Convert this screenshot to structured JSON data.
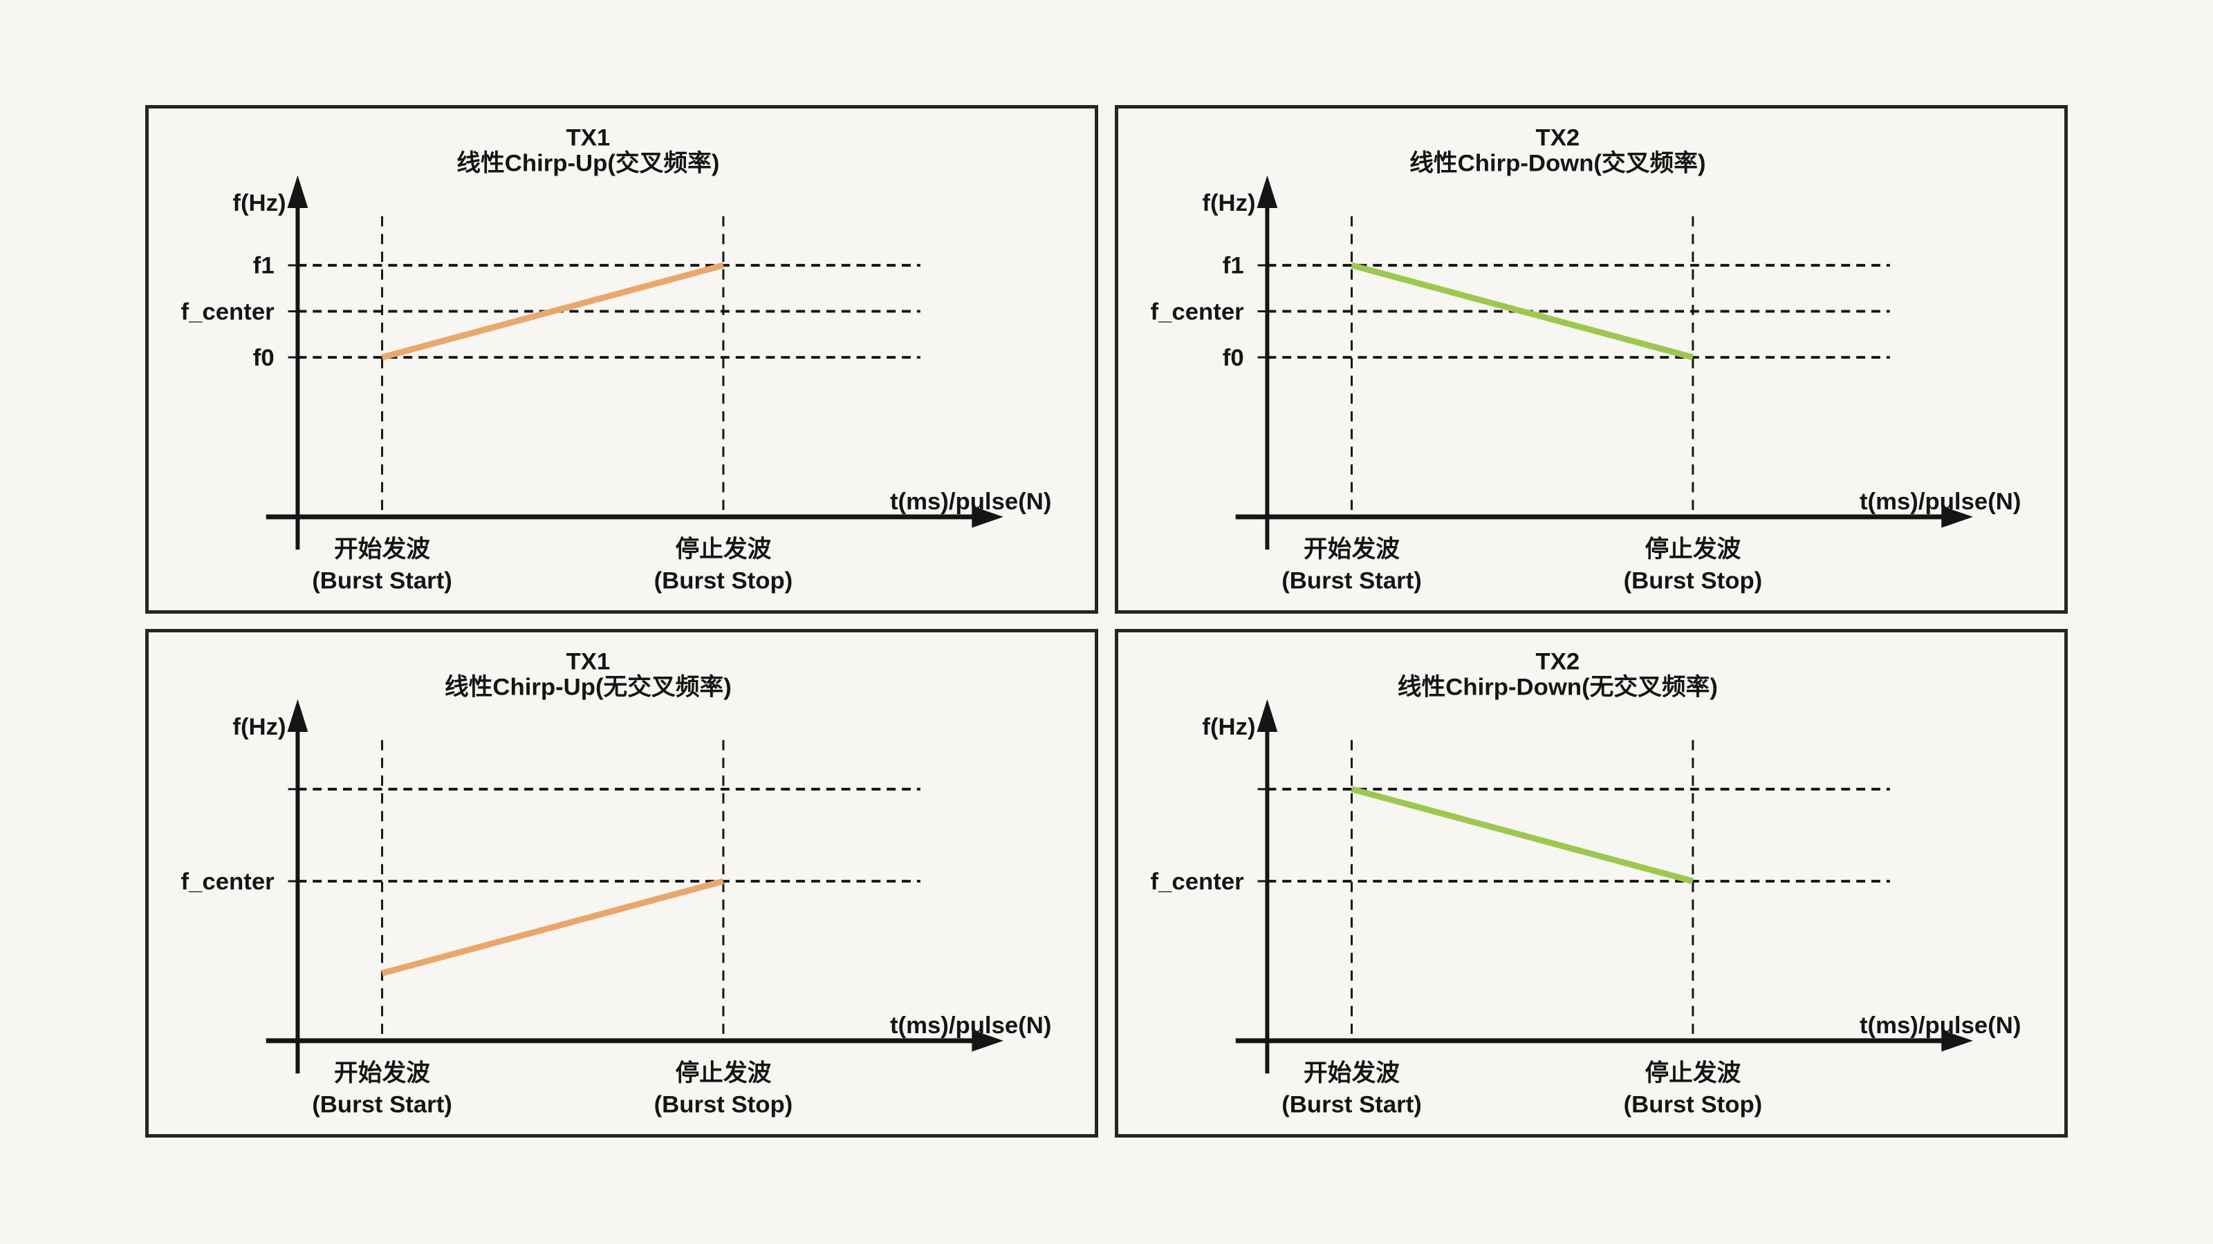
{
  "page": {
    "background": "#F7F6F3",
    "panel_border_color": "#262626",
    "axis_color": "#151515",
    "tx1_color": "#EAA76C",
    "tx2_color": "#9CC84E"
  },
  "chart_data": [
    {
      "type": "line",
      "title": "TX1",
      "subtitle": "线性Chirp-Up(交叉频率)",
      "xlabel": "t(ms)/pulse(N)",
      "ylabel": "f(Hz)",
      "color": "#EAA76C",
      "grid": "dashed",
      "y_gridlines": [
        {
          "label": "f1",
          "level": 1
        },
        {
          "label": "f_center",
          "level": 0.5
        },
        {
          "label": "f0",
          "level": 0
        }
      ],
      "x_ticks": [
        {
          "line1": "开始发波",
          "line2": "(Burst Start)"
        },
        {
          "line1": "停止发波",
          "line2": "(Burst Stop)"
        }
      ],
      "chirp": {
        "from_x": "burst_start",
        "from_level": 0,
        "to_x": "burst_stop",
        "to_level": 1
      }
    },
    {
      "type": "line",
      "title": "TX2",
      "subtitle": "线性Chirp-Down(交叉频率)",
      "xlabel": "t(ms)/pulse(N)",
      "ylabel": "f(Hz)",
      "color": "#9CC84E",
      "grid": "dashed",
      "y_gridlines": [
        {
          "label": "f1",
          "level": 1
        },
        {
          "label": "f_center",
          "level": 0.5
        },
        {
          "label": "f0",
          "level": 0
        }
      ],
      "x_ticks": [
        {
          "line1": "开始发波",
          "line2": "(Burst Start)"
        },
        {
          "line1": "停止发波",
          "line2": "(Burst Stop)"
        }
      ],
      "chirp": {
        "from_x": "burst_start",
        "from_level": 1,
        "to_x": "burst_stop",
        "to_level": 0
      }
    },
    {
      "type": "line",
      "title": "TX1",
      "subtitle": "线性Chirp-Up(无交叉频率)",
      "xlabel": "t(ms)/pulse(N)",
      "ylabel": "f(Hz)",
      "color": "#EAA76C",
      "grid": "dashed",
      "y_gridlines": [
        {
          "label": "",
          "level": 1
        },
        {
          "label": "f_center",
          "level": 0
        }
      ],
      "x_ticks": [
        {
          "line1": "开始发波",
          "line2": "(Burst Start)"
        },
        {
          "line1": "停止发波",
          "line2": "(Burst Stop)"
        }
      ],
      "chirp": {
        "from_x": "burst_start",
        "from_level": -1,
        "to_x": "burst_stop",
        "to_level": 0
      }
    },
    {
      "type": "line",
      "title": "TX2",
      "subtitle": "线性Chirp-Down(无交叉频率)",
      "xlabel": "t(ms)/pulse(N)",
      "ylabel": "f(Hz)",
      "color": "#9CC84E",
      "grid": "dashed",
      "y_gridlines": [
        {
          "label": "",
          "level": 1
        },
        {
          "label": "f_center",
          "level": 0
        }
      ],
      "x_ticks": [
        {
          "line1": "开始发波",
          "line2": "(Burst Start)"
        },
        {
          "line1": "停止发波",
          "line2": "(Burst Stop)"
        }
      ],
      "chirp": {
        "from_x": "burst_start",
        "from_level": 1,
        "to_x": "burst_stop",
        "to_level": 0
      }
    }
  ]
}
